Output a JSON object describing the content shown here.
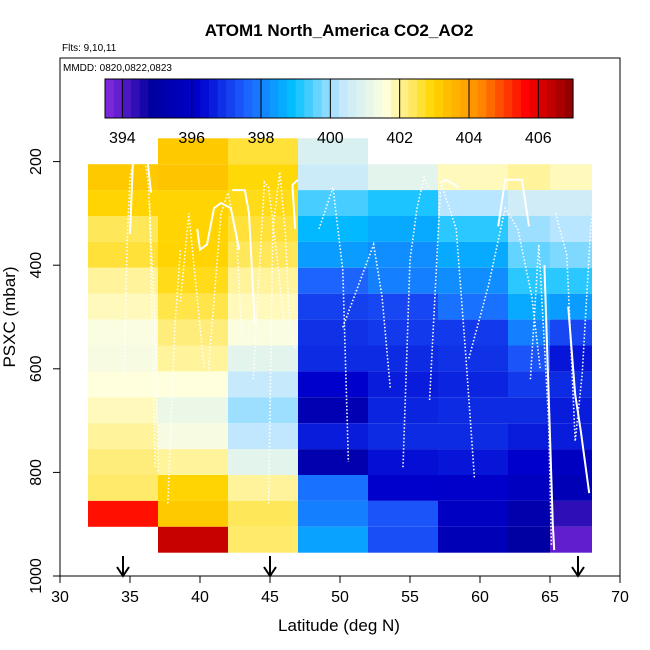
{
  "chart_data": {
    "type": "heatmap",
    "title": "ATOM1 North_America CO2_AO2",
    "annotations": [
      "Flts: 9,10,11",
      "MMDD: 0820,0822,0823"
    ],
    "xlabel": "Latitude (deg N)",
    "ylabel": "PSXC (mbar)",
    "xlim": [
      30,
      70
    ],
    "ylim": [
      1000,
      0
    ],
    "xticks": [
      "30",
      "35",
      "40",
      "45",
      "50",
      "55",
      "60",
      "65",
      "70"
    ],
    "yticks": [
      "200",
      "400",
      "600",
      "800",
      "1000"
    ],
    "colorbar": {
      "min": 393.5,
      "max": 407,
      "ticks": [
        "394",
        "396",
        "398",
        "400",
        "402",
        "404",
        "406"
      ],
      "placement": "top",
      "colors": [
        "#8a2be2",
        "#0000a0",
        "#0000cd",
        "#1e60ff",
        "#00bfff",
        "#bfe6ff",
        "#ffffdd",
        "#ffd700",
        "#ff8c00",
        "#ff0000",
        "#8b0000"
      ]
    },
    "arrows_at_latitude": [
      34.5,
      45,
      67
    ],
    "pressure_levels_mbar": [
      180,
      230,
      280,
      330,
      380,
      430,
      480,
      530,
      580,
      630,
      680,
      730,
      780,
      830,
      880,
      930
    ],
    "bands": [
      {
        "lat": [
          32,
          37
        ],
        "values": [
          null,
          403.2,
          403.0,
          402.4,
          402.6,
          402.0,
          401.8,
          401.5,
          401.4,
          401.6,
          401.8,
          402.0,
          402.2,
          402.3,
          405.5,
          null
        ]
      },
      {
        "lat": [
          37,
          42
        ],
        "values": [
          403.2,
          403.3,
          403.0,
          403.0,
          403.0,
          402.8,
          402.5,
          402.2,
          402.0,
          401.6,
          401.2,
          401.4,
          402.0,
          403.0,
          403.2,
          406.3
        ]
      },
      {
        "lat": [
          42,
          47
        ],
        "values": [
          402.6,
          402.9,
          402.8,
          402.6,
          402.4,
          402.0,
          401.8,
          401.5,
          401.0,
          400.4,
          400.0,
          400.3,
          401.0,
          402.0,
          402.4,
          402.3
        ]
      },
      {
        "lat": [
          47,
          52
        ],
        "values": [
          400.8,
          400.5,
          399.4,
          398.8,
          398.4,
          397.6,
          397.1,
          396.9,
          396.8,
          396.2,
          395.4,
          396.6,
          395.3,
          397.8,
          398.0,
          398.5
        ]
      },
      {
        "lat": [
          52,
          57
        ],
        "values": [
          null,
          401.0,
          399.1,
          398.6,
          398.2,
          398.0,
          397.2,
          397.0,
          396.8,
          396.6,
          396.7,
          396.8,
          396.4,
          396.2,
          397.4,
          397.3
        ]
      },
      {
        "lat": [
          57,
          62
        ],
        "values": [
          null,
          401.8,
          400.2,
          399.2,
          398.6,
          398.2,
          397.8,
          397.0,
          396.9,
          396.7,
          396.8,
          396.8,
          396.5,
          396.1,
          395.9,
          395.5
        ]
      },
      {
        "lat": [
          62,
          65
        ],
        "values": [
          null,
          402.0,
          400.6,
          400.0,
          399.6,
          399.2,
          398.6,
          398.0,
          397.4,
          397.0,
          396.8,
          396.6,
          396.2,
          395.8,
          395.2,
          394.9
        ]
      },
      {
        "lat": [
          65,
          68
        ],
        "values": [
          null,
          401.8,
          400.6,
          400.2,
          399.8,
          399.2,
          398.4,
          397.2,
          396.5,
          396.8,
          396.6,
          396.6,
          395.8,
          395.5,
          394.4,
          393.9
        ]
      }
    ]
  }
}
